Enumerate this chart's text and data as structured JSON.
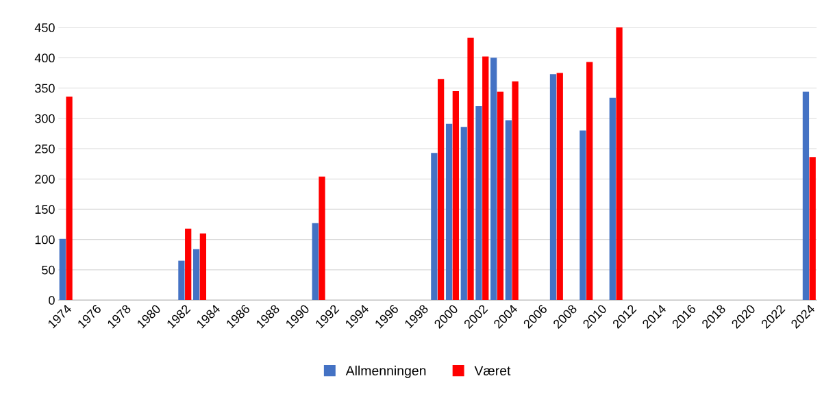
{
  "chart_data": {
    "type": "bar",
    "categories": [
      "1974",
      null,
      "1976",
      null,
      "1978",
      null,
      "1980",
      null,
      "1982",
      null,
      "1984",
      null,
      "1986",
      null,
      "1988",
      null,
      "1990",
      null,
      "1992",
      null,
      "1994",
      null,
      "1996",
      null,
      "1998",
      null,
      "2000",
      null,
      "2002",
      null,
      "2004",
      null,
      "2006",
      null,
      "2008",
      null,
      "2010",
      null,
      "2012",
      null,
      "2014",
      null,
      "2016",
      null,
      "2018",
      null,
      "2020",
      null,
      "2022",
      null,
      "2024"
    ],
    "series": [
      {
        "name": "Allmenningen",
        "color": "#4472c4",
        "values": [
          101,
          null,
          null,
          null,
          null,
          null,
          null,
          null,
          65,
          84,
          null,
          null,
          null,
          null,
          null,
          null,
          null,
          127,
          null,
          null,
          null,
          null,
          null,
          null,
          null,
          243,
          291,
          286,
          320,
          400,
          297,
          null,
          null,
          373,
          null,
          280,
          null,
          334,
          null,
          null,
          null,
          null,
          null,
          null,
          null,
          null,
          null,
          null,
          null,
          null,
          344
        ]
      },
      {
        "name": "Været",
        "color": "#ff0000",
        "values": [
          336,
          null,
          null,
          null,
          null,
          null,
          null,
          null,
          118,
          110,
          null,
          null,
          null,
          null,
          null,
          null,
          null,
          204,
          null,
          null,
          null,
          null,
          null,
          null,
          null,
          365,
          345,
          433,
          402,
          344,
          361,
          null,
          null,
          375,
          null,
          393,
          null,
          450,
          null,
          null,
          null,
          null,
          null,
          null,
          null,
          null,
          null,
          null,
          null,
          null,
          236
        ]
      }
    ],
    "ylim": [
      0,
      450
    ],
    "yticks": [
      0,
      50,
      100,
      150,
      200,
      250,
      300,
      350,
      400,
      450
    ],
    "grid": "y",
    "legend": "bottom"
  }
}
